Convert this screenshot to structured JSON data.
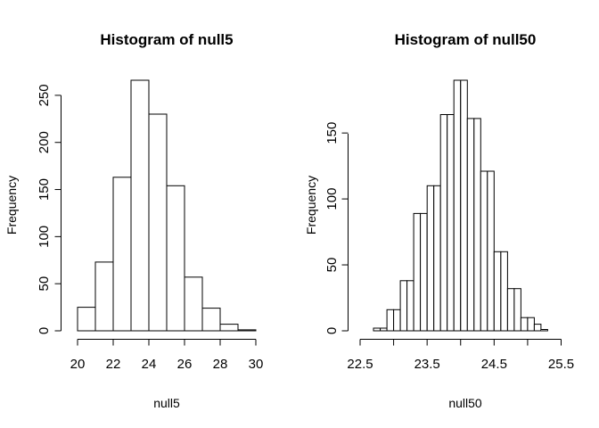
{
  "chart_data": [
    {
      "type": "bar",
      "title": "Histogram of null5",
      "xlabel": "null5",
      "ylabel": "Frequency",
      "bins": [
        [
          20,
          21
        ],
        [
          21,
          22
        ],
        [
          22,
          23
        ],
        [
          23,
          24
        ],
        [
          24,
          25
        ],
        [
          25,
          26
        ],
        [
          26,
          27
        ],
        [
          27,
          28
        ],
        [
          28,
          29
        ],
        [
          29,
          30
        ]
      ],
      "values": [
        25,
        73,
        163,
        266,
        230,
        154,
        57,
        24,
        7,
        1
      ],
      "xlim": [
        20,
        30
      ],
      "ylim": [
        0,
        266
      ],
      "x_ticks": [
        20,
        22,
        24,
        26,
        28,
        30
      ],
      "x_tick_labels": [
        "20",
        "22",
        "24",
        "26",
        "28",
        "30"
      ],
      "y_ticks": [
        0,
        50,
        100,
        150,
        200,
        250
      ],
      "y_tick_labels": [
        "0",
        "50",
        "100",
        "150",
        "200",
        "250"
      ],
      "grid": false,
      "legend": "none"
    },
    {
      "type": "bar",
      "title": "Histogram of null50",
      "xlabel": "null50",
      "ylabel": "Frequency",
      "bins": [
        [
          22.7,
          22.8
        ],
        [
          22.8,
          22.9
        ],
        [
          22.9,
          23.0
        ],
        [
          23.0,
          23.1
        ],
        [
          23.1,
          23.2
        ],
        [
          23.2,
          23.3
        ],
        [
          23.3,
          23.4
        ],
        [
          23.4,
          23.5
        ],
        [
          23.5,
          23.6
        ],
        [
          23.6,
          23.7
        ],
        [
          23.7,
          23.8
        ],
        [
          23.8,
          23.9
        ],
        [
          23.9,
          24.0
        ],
        [
          24.0,
          24.1
        ],
        [
          24.1,
          24.2
        ],
        [
          24.2,
          24.3
        ],
        [
          24.3,
          24.4
        ],
        [
          24.4,
          24.5
        ],
        [
          24.5,
          24.6
        ],
        [
          24.6,
          24.7
        ],
        [
          24.7,
          24.8
        ],
        [
          24.8,
          24.9
        ],
        [
          24.9,
          25.0
        ],
        [
          25.0,
          25.1
        ],
        [
          25.1,
          25.2
        ],
        [
          25.2,
          25.3
        ]
      ],
      "values": [
        2,
        2,
        16,
        16,
        38,
        38,
        89,
        89,
        110,
        110,
        164,
        164,
        190,
        190,
        161,
        161,
        121,
        121,
        60,
        60,
        32,
        32,
        10,
        10,
        5,
        1
      ],
      "xlim": [
        22.5,
        25.5
      ],
      "ylim": [
        0,
        190
      ],
      "x_ticks": [
        22.5,
        23.0,
        23.5,
        24.0,
        24.5,
        25.0,
        25.5
      ],
      "x_tick_labels": [
        "22.5",
        "",
        "23.5",
        "",
        "24.5",
        "",
        "25.5"
      ],
      "y_ticks": [
        0,
        50,
        100,
        150
      ],
      "y_tick_labels": [
        "0",
        "50",
        "100",
        "150"
      ],
      "grid": false,
      "legend": "none"
    }
  ]
}
